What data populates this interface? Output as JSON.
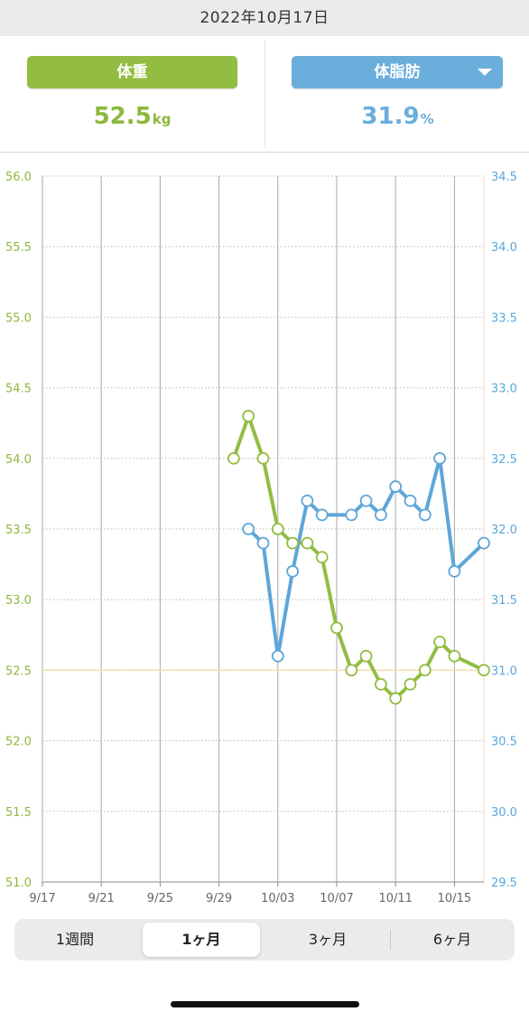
{
  "date_label": "2022年10月17日",
  "metrics": {
    "left": {
      "button_label": "体重",
      "value": "52.5",
      "unit": "kg",
      "color": "#92bd42"
    },
    "right": {
      "button_label": "体脂肪",
      "value": "31.9",
      "unit": "%",
      "color": "#6aaedc",
      "dropdown_icon": "caret-down-icon"
    }
  },
  "periods": [
    "1週間",
    "1ヶ月",
    "3ヶ月",
    "6ヶ月"
  ],
  "active_period": 1,
  "chart_data": {
    "type": "line",
    "title": "",
    "x_ticks": [
      "9/17",
      "9/21",
      "9/25",
      "9/29",
      "10/03",
      "10/07",
      "10/11",
      "10/15"
    ],
    "x_start": "2022-09-17",
    "x_end": "2022-10-17",
    "y_left": {
      "ticks": [
        "56.0",
        "55.5",
        "55.0",
        "54.5",
        "54.0",
        "53.5",
        "53.0",
        "52.5",
        "52.0",
        "51.5",
        "51.0"
      ],
      "range": [
        51.0,
        56.0
      ],
      "color": "#8cb83d"
    },
    "y_right": {
      "ticks": [
        "34.5",
        "34.0",
        "33.5",
        "33.0",
        "32.5",
        "32.0",
        "31.5",
        "31.0",
        "30.5",
        "30.0",
        "29.5"
      ],
      "range": [
        29.5,
        34.5
      ],
      "color": "#5aa7dc"
    },
    "reference_line": {
      "value": 52.5,
      "axis": "left",
      "color": "#f0dcb4"
    },
    "grid": true,
    "series": [
      {
        "axis": "left",
        "color": "#92bd42",
        "points": [
          [
            "2022-09-30",
            54.0
          ],
          [
            "2022-10-01",
            54.3
          ],
          [
            "2022-10-02",
            54.0
          ],
          [
            "2022-10-03",
            53.5
          ],
          [
            "2022-10-04",
            53.4
          ],
          [
            "2022-10-05",
            53.4
          ],
          [
            "2022-10-06",
            53.3
          ],
          [
            "2022-10-07",
            52.8
          ],
          [
            "2022-10-08",
            52.5
          ],
          [
            "2022-10-09",
            52.6
          ],
          [
            "2022-10-10",
            52.4
          ],
          [
            "2022-10-11",
            52.3
          ],
          [
            "2022-10-12",
            52.4
          ],
          [
            "2022-10-13",
            52.5
          ],
          [
            "2022-10-14",
            52.7
          ],
          [
            "2022-10-15",
            52.6
          ],
          [
            "2022-10-17",
            52.5
          ]
        ]
      },
      {
        "axis": "right",
        "color": "#5ea6d8",
        "points": [
          [
            "2022-10-01",
            32.0
          ],
          [
            "2022-10-02",
            31.9
          ],
          [
            "2022-10-03",
            31.1
          ],
          [
            "2022-10-04",
            31.7
          ],
          [
            "2022-10-05",
            32.2
          ],
          [
            "2022-10-06",
            32.1
          ],
          [
            "2022-10-08",
            32.1
          ],
          [
            "2022-10-09",
            32.2
          ],
          [
            "2022-10-10",
            32.1
          ],
          [
            "2022-10-11",
            32.3
          ],
          [
            "2022-10-12",
            32.2
          ],
          [
            "2022-10-13",
            32.1
          ],
          [
            "2022-10-14",
            32.5
          ],
          [
            "2022-10-15",
            31.7
          ],
          [
            "2022-10-17",
            31.9
          ]
        ]
      }
    ]
  }
}
